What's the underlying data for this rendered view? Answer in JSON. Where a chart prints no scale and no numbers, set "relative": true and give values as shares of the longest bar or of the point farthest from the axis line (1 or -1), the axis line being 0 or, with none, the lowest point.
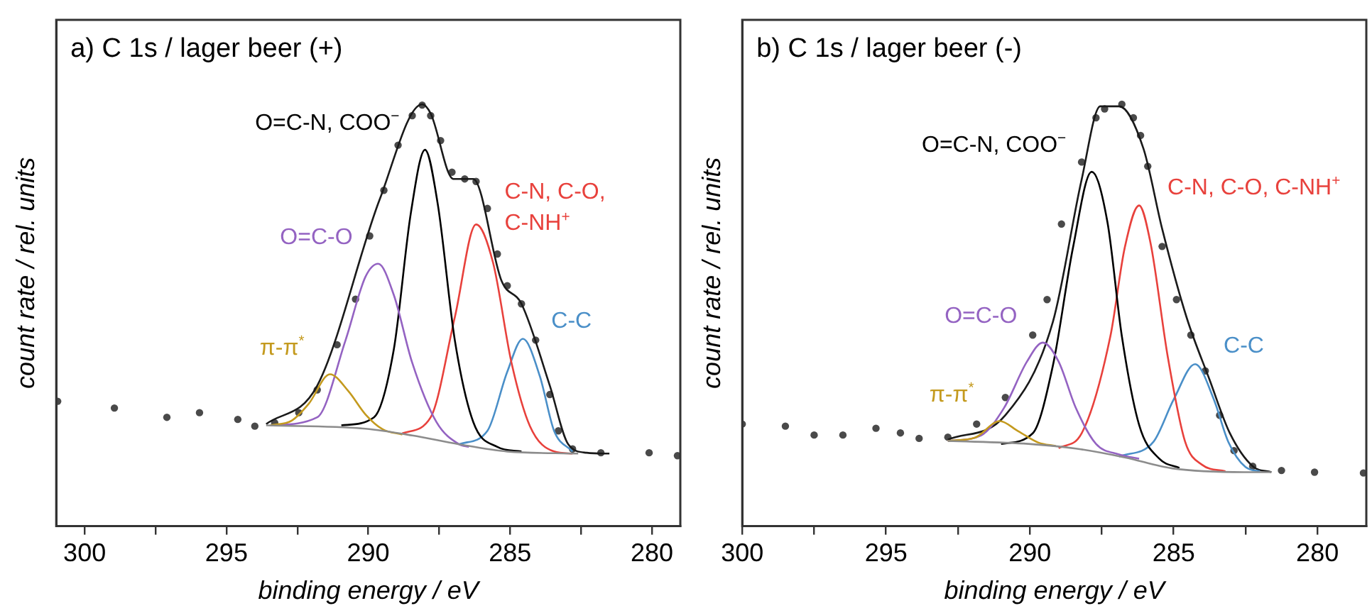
{
  "chart_data": [
    {
      "type": "line",
      "title": "a) C 1s / lager beer (+)",
      "xlabel": "binding energy / eV",
      "ylabel": "count rate / rel. units",
      "relative": true,
      "grid": false,
      "legend": false,
      "xlim": [
        301,
        279
      ],
      "xticks": [
        300,
        {
          "value": 297.5,
          "label": null
        },
        295,
        {
          "value": 292.5,
          "label": null
        },
        290,
        {
          "value": 287.5,
          "label": null
        },
        285,
        {
          "value": 282.5,
          "label": null
        },
        280
      ],
      "series": [
        {
          "type": "scatter",
          "marker": "circle",
          "color": "#4a4a4a",
          "x": [
            300.95,
            298.95,
            297.1,
            295.95,
            294.6,
            294.0,
            293.3,
            292.45,
            291.8,
            291.1,
            290.45,
            289.95,
            289.45,
            288.95,
            288.45,
            288.1,
            287.8,
            287.45,
            287.05,
            286.6,
            286.2,
            285.8,
            285.45,
            285.1,
            284.6,
            284.1,
            283.6,
            283.3,
            282.8,
            281.8,
            280.1,
            279.1
          ],
          "values": [
            0.296,
            0.28,
            0.258,
            0.269,
            0.253,
            0.237,
            0.245,
            0.269,
            0.323,
            0.43,
            0.538,
            0.688,
            0.796,
            0.903,
            0.973,
            0.998,
            0.973,
            0.914,
            0.839,
            0.823,
            0.817,
            0.753,
            0.645,
            0.57,
            0.527,
            0.441,
            0.312,
            0.226,
            0.183,
            0.174,
            0.174,
            0.167
          ]
        },
        {
          "type": "line",
          "color": "#8c8c8c",
          "x": [
            293.6,
            290.1,
            288.45,
            286.8,
            285.1,
            282.6
          ],
          "values": [
            0.239,
            0.231,
            0.215,
            0.194,
            0.177,
            0.172
          ]
        },
        {
          "type": "line",
          "name": "π-π$^{*}$",
          "color": "#c49a1e",
          "x": [
            293.45,
            292.7,
            292.1,
            291.35,
            290.7,
            290.1,
            289.5,
            288.8
          ],
          "values": [
            0.239,
            0.25,
            0.29,
            0.36,
            0.32,
            0.265,
            0.23,
            0.217
          ]
        },
        {
          "type": "line",
          "name": "O=C-O",
          "color": "#9463c2",
          "x": [
            293.45,
            291.8,
            290.8,
            290.1,
            289.65,
            289.1,
            288.45,
            287.6,
            286.8,
            286.45
          ],
          "values": [
            0.239,
            0.258,
            0.441,
            0.591,
            0.622,
            0.548,
            0.387,
            0.247,
            0.194,
            0.188
          ]
        },
        {
          "type": "line",
          "name": "O=C-N, COO$^{−}$",
          "color": "#000000",
          "x": [
            290.95,
            289.8,
            289.1,
            288.5,
            288.0,
            287.55,
            286.95,
            286.3,
            285.45,
            284.6
          ],
          "values": [
            0.239,
            0.258,
            0.419,
            0.742,
            0.892,
            0.763,
            0.441,
            0.247,
            0.188,
            0.177
          ]
        },
        {
          "type": "line",
          "name": "C-N, C-O, C-NH$^{+}$",
          "color": "#e8413c",
          "x": [
            288.8,
            287.8,
            286.95,
            286.2,
            285.6,
            284.95,
            284.3,
            283.45,
            282.8
          ],
          "values": [
            0.22,
            0.258,
            0.495,
            0.715,
            0.624,
            0.387,
            0.237,
            0.177,
            0.172
          ]
        },
        {
          "type": "line",
          "name": "C-C",
          "color": "#4a8fc8",
          "x": [
            286.8,
            285.8,
            285.1,
            284.55,
            283.95,
            283.45,
            282.8
          ],
          "values": [
            0.194,
            0.226,
            0.366,
            0.444,
            0.355,
            0.226,
            0.177
          ]
        },
        {
          "type": "line",
          "color": "#1a1a1a",
          "x": [
            293.6,
            291.8,
            289.6,
            288.1,
            287.8,
            287.0,
            286.3,
            285.3,
            284.6,
            283.6,
            282.95,
            282.3,
            281.5
          ],
          "values": [
            0.242,
            0.333,
            0.774,
            1.0,
            0.978,
            0.823,
            0.823,
            0.581,
            0.527,
            0.333,
            0.194,
            0.174,
            0.172
          ]
        }
      ]
    },
    {
      "type": "line",
      "title": "b) C 1s / lager beer (-)",
      "xlabel": "binding energy / eV",
      "ylabel": "count rate / rel. units",
      "relative": true,
      "grid": false,
      "legend": false,
      "xlim": [
        300,
        278.3
      ],
      "xticks": [
        300,
        {
          "value": 297.5,
          "label": null
        },
        295,
        {
          "value": 292.5,
          "label": null
        },
        290,
        {
          "value": 287.5,
          "label": null
        },
        285,
        {
          "value": 282.5,
          "label": null
        },
        280
      ],
      "series": [
        {
          "type": "scatter",
          "marker": "circle",
          "color": "#4a4a4a",
          "x": [
            300,
            298.5,
            297.5,
            296.5,
            295.35,
            294.5,
            293.85,
            292.85,
            291.85,
            290.85,
            289.9,
            289.4,
            288.9,
            288.2,
            287.7,
            287.4,
            286.8,
            286.4,
            286.15,
            285.9,
            285.4,
            284.9,
            284.4,
            283.9,
            283.4,
            282.9,
            282.25,
            281.25,
            280.1,
            278.4
          ],
          "values": [
            0.242,
            0.237,
            0.216,
            0.216,
            0.232,
            0.221,
            0.208,
            0.211,
            0.242,
            0.305,
            0.453,
            0.537,
            0.716,
            0.863,
            0.968,
            0.989,
            1.0,
            0.968,
            0.926,
            0.853,
            0.663,
            0.537,
            0.453,
            0.368,
            0.263,
            0.179,
            0.142,
            0.132,
            0.128,
            0.126
          ]
        },
        {
          "type": "line",
          "color": "#8c8c8c",
          "x": [
            292.85,
            290.05,
            288.4,
            286.7,
            285.05,
            282.55,
            281.6
          ],
          "values": [
            0.202,
            0.195,
            0.184,
            0.163,
            0.137,
            0.128,
            0.128
          ]
        },
        {
          "type": "line",
          "name": "π-π$^{*}$",
          "color": "#c49a1e",
          "x": [
            292.85,
            291.9,
            291.05,
            290.4,
            289.7,
            289.1
          ],
          "values": [
            0.202,
            0.21,
            0.249,
            0.225,
            0.198,
            0.19
          ]
        },
        {
          "type": "line",
          "name": "O=C-O",
          "color": "#9463c2",
          "x": [
            292.85,
            291.7,
            290.9,
            290.1,
            289.55,
            289.0,
            288.4,
            287.7,
            286.9,
            286.2
          ],
          "values": [
            0.202,
            0.215,
            0.28,
            0.39,
            0.435,
            0.39,
            0.28,
            0.195,
            0.17,
            0.16
          ]
        },
        {
          "type": "line",
          "name": "O=C-N, COO$^{−}$",
          "color": "#000000",
          "x": [
            291.0,
            289.9,
            289.2,
            288.5,
            287.85,
            287.3,
            286.8,
            286.2,
            285.5,
            284.8
          ],
          "values": [
            0.195,
            0.22,
            0.38,
            0.66,
            0.84,
            0.72,
            0.45,
            0.24,
            0.16,
            0.138
          ]
        },
        {
          "type": "line",
          "name": "C-N, C-O, C-NH$^{+}$",
          "color": "#e8413c",
          "x": [
            289.0,
            288.2,
            287.2,
            286.7,
            286.2,
            285.8,
            285.2,
            284.6,
            284.0,
            283.2
          ],
          "values": [
            0.185,
            0.22,
            0.45,
            0.66,
            0.76,
            0.67,
            0.4,
            0.2,
            0.145,
            0.13
          ]
        },
        {
          "type": "line",
          "name": "C-C",
          "color": "#4a8fc8",
          "x": [
            286.9,
            285.7,
            285.0,
            284.25,
            283.6,
            283.1,
            282.5,
            282.0
          ],
          "values": [
            0.165,
            0.2,
            0.3,
            0.384,
            0.3,
            0.2,
            0.14,
            0.13
          ]
        },
        {
          "type": "line",
          "color": "#1a1a1a",
          "x": [
            292.85,
            290.85,
            289.2,
            288.2,
            287.55,
            286.9,
            286.05,
            285.4,
            284.55,
            283.75,
            283.05,
            282.25,
            281.6
          ],
          "values": [
            0.205,
            0.263,
            0.484,
            0.821,
            0.995,
            0.995,
            0.895,
            0.705,
            0.495,
            0.347,
            0.221,
            0.142,
            0.128
          ]
        }
      ]
    }
  ]
}
